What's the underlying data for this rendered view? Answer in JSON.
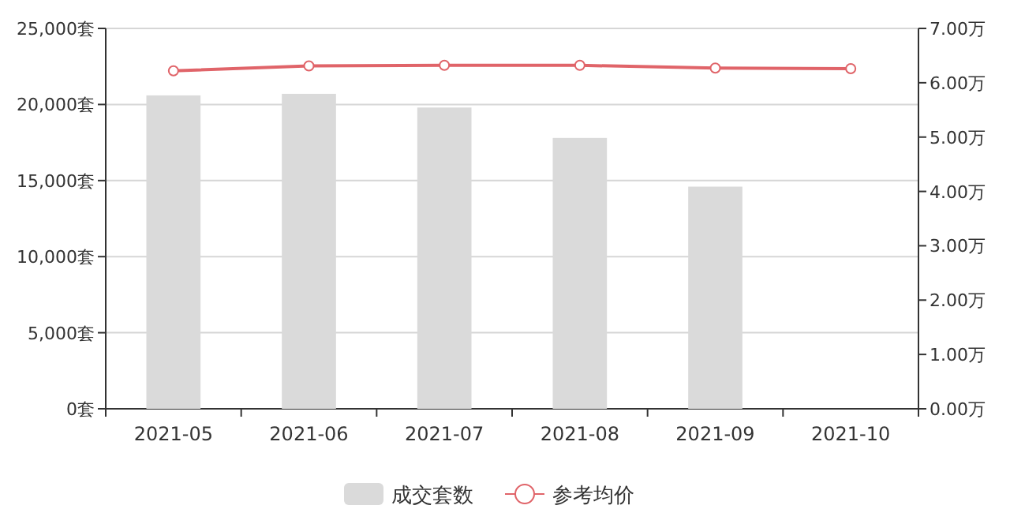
{
  "chart_data": {
    "type": "bar",
    "categories": [
      "2021-05",
      "2021-06",
      "2021-07",
      "2021-08",
      "2021-09",
      "2021-10"
    ],
    "series": [
      {
        "name": "成交套数",
        "color": "#dadada",
        "values": [
          20600,
          20700,
          19800,
          17800,
          14600,
          null
        ]
      },
      {
        "name": "参考均价",
        "type": "line",
        "axis": "y2",
        "color": "#e06469",
        "marker": "circle",
        "values": [
          6.22,
          6.31,
          6.32,
          6.32,
          6.27,
          6.26
        ]
      }
    ],
    "ylim": [
      0,
      25000
    ],
    "yticks": [
      {
        "value": 0,
        "label": "0套"
      },
      {
        "value": 5000,
        "label": "5,000套"
      },
      {
        "value": 10000,
        "label": "10,000套"
      },
      {
        "value": 15000,
        "label": "15,000套"
      },
      {
        "value": 20000,
        "label": "20,000套"
      },
      {
        "value": 25000,
        "label": "25,000套"
      }
    ],
    "y2lim": [
      0,
      7
    ],
    "y2ticks": [
      {
        "value": 0,
        "label": "0.00万"
      },
      {
        "value": 1,
        "label": "1.00万"
      },
      {
        "value": 2,
        "label": "2.00万"
      },
      {
        "value": 3,
        "label": "3.00万"
      },
      {
        "value": 4,
        "label": "4.00万"
      },
      {
        "value": 5,
        "label": "5.00万"
      },
      {
        "value": 6,
        "label": "6.00万"
      },
      {
        "value": 7,
        "label": "7.00万"
      }
    ],
    "grid": "y",
    "legend": "bottom"
  }
}
